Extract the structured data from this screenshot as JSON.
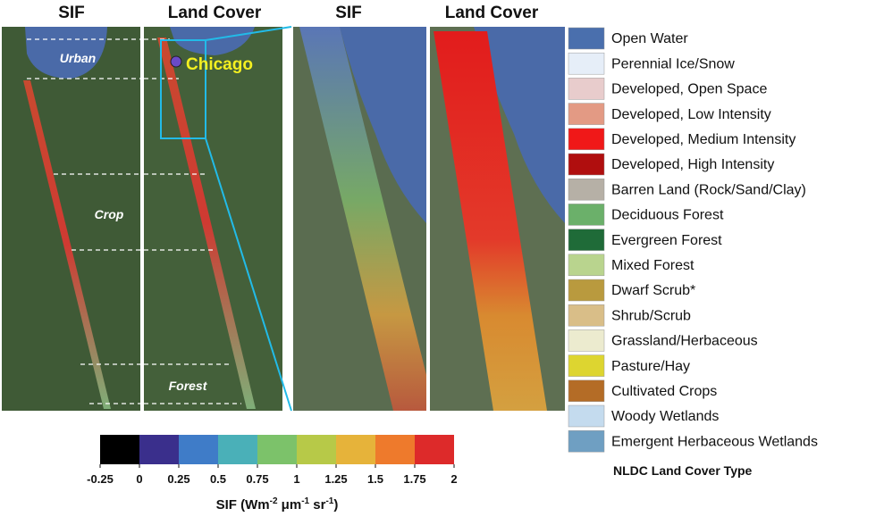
{
  "panels": [
    {
      "title": "SIF"
    },
    {
      "title": "Land Cover"
    },
    {
      "title": "SIF"
    },
    {
      "title": "Land Cover"
    }
  ],
  "map_labels": {
    "urban": "Urban",
    "crop": "Crop",
    "forest": "Forest",
    "city": "Chicago"
  },
  "legend": {
    "title": "NLDC Land Cover Type",
    "items": [
      {
        "label": "Open Water",
        "color": "#4a6fad"
      },
      {
        "label": "Perennial Ice/Snow",
        "color": "#e6eef8"
      },
      {
        "label": "Developed, Open Space",
        "color": "#e8cccc"
      },
      {
        "label": "Developed, Low Intensity",
        "color": "#e39a84"
      },
      {
        "label": "Developed, Medium Intensity",
        "color": "#f01818"
      },
      {
        "label": "Developed, High Intensity",
        "color": "#b00e0e"
      },
      {
        "label": "Barren Land (Rock/Sand/Clay)",
        "color": "#b6b0a6"
      },
      {
        "label": "Deciduous Forest",
        "color": "#6bb06a"
      },
      {
        "label": "Evergreen Forest",
        "color": "#1f6b38"
      },
      {
        "label": "Mixed Forest",
        "color": "#b9d48e"
      },
      {
        "label": "Dwarf Scrub*",
        "color": "#b99a3e"
      },
      {
        "label": "Shrub/Scrub",
        "color": "#d9be88"
      },
      {
        "label": "Grassland/Herbaceous",
        "color": "#ecebcf"
      },
      {
        "label": "Pasture/Hay",
        "color": "#ddd530"
      },
      {
        "label": "Cultivated Crops",
        "color": "#b46c26"
      },
      {
        "label": "Woody Wetlands",
        "color": "#c4dbee"
      },
      {
        "label": "Emergent Herbaceous Wetlands",
        "color": "#6f9fc2"
      }
    ]
  },
  "colorbar": {
    "ticks": [
      -0.25,
      0,
      0.25,
      0.5,
      0.75,
      1,
      1.25,
      1.5,
      1.75,
      2
    ],
    "colors": [
      "#000000",
      "#3a2f8c",
      "#3f7cc8",
      "#4ab0b8",
      "#7cc26a",
      "#b7c948",
      "#e6b33a",
      "#ee7a2c",
      "#dd2a2a"
    ],
    "label": [
      "SIF (Wm",
      "-2",
      " μm",
      "-1",
      " sr",
      "-1",
      ")"
    ]
  }
}
